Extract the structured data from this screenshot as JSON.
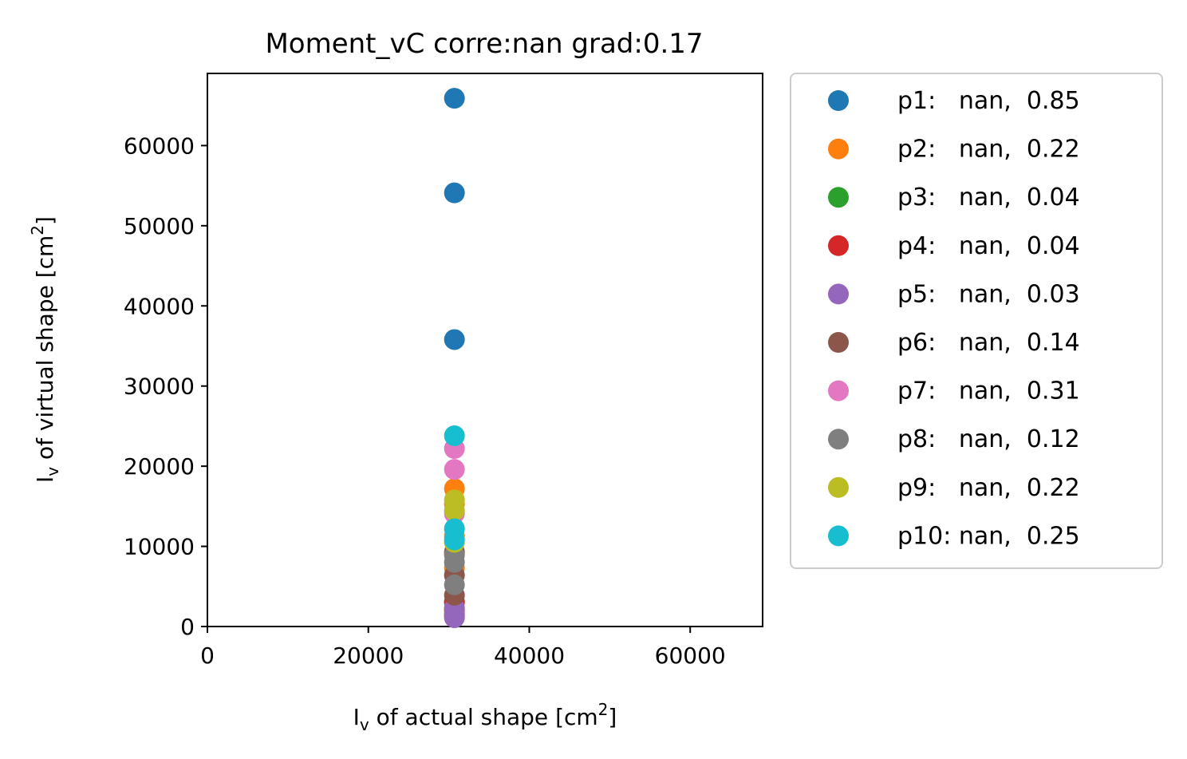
{
  "chart_data": {
    "type": "scatter",
    "title": "Moment_vC corre:nan grad:0.17",
    "xlabel": {
      "main": "I",
      "sub": "v",
      "rest": " of actual shape [cm",
      "sup": "2",
      "end": "]"
    },
    "ylabel": {
      "main": "I",
      "sub": "v",
      "rest": " of virtual shape [cm",
      "sup": "2",
      "end": "]"
    },
    "xlim": [
      0,
      69000
    ],
    "ylim": [
      0,
      69000
    ],
    "xticks": [
      0,
      20000,
      40000,
      60000
    ],
    "yticks": [
      0,
      10000,
      20000,
      30000,
      40000,
      50000,
      60000
    ],
    "grid": false,
    "legend_position": "outside-right",
    "series": [
      {
        "name": "p1:   nan,  0.85",
        "color": "#1f77b4",
        "points": [
          [
            30700,
            65900
          ],
          [
            30700,
            54100
          ],
          [
            30700,
            35800
          ]
        ]
      },
      {
        "name": "p2:   nan,  0.22",
        "color": "#ff7f0e",
        "points": [
          [
            30700,
            17200
          ],
          [
            30700,
            15300
          ],
          [
            30700,
            11300
          ],
          [
            30700,
            9100
          ],
          [
            30700,
            7300
          ]
        ]
      },
      {
        "name": "p3:   nan,  0.04",
        "color": "#2ca02c",
        "points": [
          [
            30700,
            3100
          ],
          [
            30700,
            2200
          ],
          [
            30700,
            1500
          ]
        ]
      },
      {
        "name": "p4:   nan,  0.04",
        "color": "#d62728",
        "points": [
          [
            30700,
            3000
          ],
          [
            30700,
            2000
          ],
          [
            30700,
            1300
          ]
        ]
      },
      {
        "name": "p5:   nan,  0.03",
        "color": "#9467bd",
        "points": [
          [
            30700,
            2300
          ],
          [
            30700,
            1600
          ],
          [
            30700,
            1100
          ]
        ]
      },
      {
        "name": "p6:   nan,  0.14",
        "color": "#8c564b",
        "points": [
          [
            30700,
            9300
          ],
          [
            30700,
            6400
          ],
          [
            30700,
            3900
          ]
        ]
      },
      {
        "name": "p7:   nan,  0.31",
        "color": "#e377c2",
        "points": [
          [
            30700,
            22200
          ],
          [
            30700,
            19600
          ],
          [
            30700,
            14100
          ]
        ]
      },
      {
        "name": "p8:   nan,  0.12",
        "color": "#7f7f7f",
        "points": [
          [
            30700,
            8900
          ],
          [
            30700,
            8000
          ],
          [
            30700,
            5200
          ]
        ]
      },
      {
        "name": "p9:   nan,  0.22",
        "color": "#bcbd22",
        "points": [
          [
            30700,
            15800
          ],
          [
            30700,
            14500
          ],
          [
            30700,
            10500
          ]
        ]
      },
      {
        "name": "p10: nan,  0.25",
        "color": "#17becf",
        "points": [
          [
            30700,
            23800
          ],
          [
            30700,
            12200
          ],
          [
            30700,
            10800
          ]
        ]
      }
    ]
  }
}
